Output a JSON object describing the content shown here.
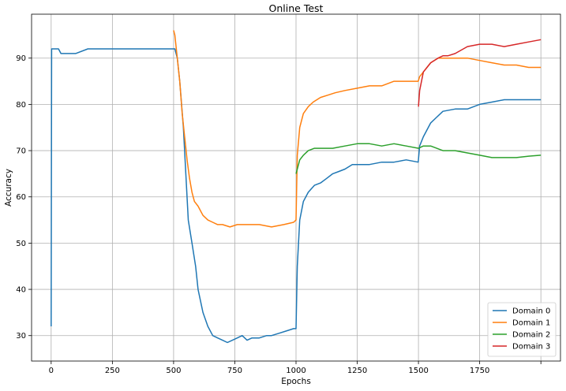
{
  "chart_data": {
    "type": "line",
    "title": "Online Test",
    "xlabel": "Epochs",
    "ylabel": "Accuracy",
    "xlim": [
      -80,
      2080
    ],
    "ylim": [
      24.5,
      99.5
    ],
    "xticks": [
      0,
      250,
      500,
      750,
      1000,
      1250,
      1500,
      1750,
      2000
    ],
    "xtick_labels": [
      "0",
      "250",
      "500",
      "750",
      "1000",
      "1250",
      "1500",
      "1750",
      ""
    ],
    "yticks": [
      30,
      40,
      50,
      60,
      70,
      80,
      90
    ],
    "ytick_labels": [
      "30",
      "40",
      "50",
      "60",
      "70",
      "80",
      "90"
    ],
    "grid": true,
    "legend_position": "bottom-right",
    "series": [
      {
        "name": "Domain 0",
        "color": "#1f77b4",
        "x": [
          0,
          2,
          5,
          30,
          40,
          100,
          150,
          200,
          300,
          400,
          480,
          495,
          505,
          515,
          525,
          540,
          550,
          560,
          575,
          590,
          600,
          620,
          640,
          660,
          680,
          700,
          720,
          740,
          760,
          780,
          800,
          820,
          850,
          880,
          900,
          930,
          960,
          990,
          1000,
          1005,
          1015,
          1030,
          1050,
          1075,
          1100,
          1125,
          1150,
          1175,
          1200,
          1230,
          1260,
          1300,
          1350,
          1400,
          1450,
          1499,
          1505,
          1520,
          1550,
          1570,
          1600,
          1650,
          1700,
          1750,
          1800,
          1850,
          1900,
          1950,
          2000
        ],
        "y": [
          32,
          92,
          92,
          92,
          91,
          91,
          92,
          92,
          92,
          92,
          92,
          92,
          92,
          90,
          85,
          75,
          65,
          55,
          50,
          45,
          40,
          35,
          32,
          30,
          29.5,
          29,
          28.5,
          29,
          29.5,
          30,
          29,
          29.5,
          29.5,
          30,
          30,
          30.5,
          31,
          31.5,
          31.5,
          45,
          55,
          59,
          61,
          62.5,
          63,
          64,
          65,
          65.5,
          66,
          67,
          67,
          67,
          67.5,
          67.5,
          68,
          67.5,
          71,
          73,
          76,
          77,
          78.5,
          79,
          79,
          80,
          80.5,
          81,
          81,
          81,
          81
        ]
      },
      {
        "name": "Domain 1",
        "color": "#ff7f0e",
        "x": [
          500,
          505,
          515,
          525,
          535,
          545,
          555,
          565,
          575,
          585,
          600,
          620,
          640,
          660,
          680,
          700,
          730,
          760,
          800,
          850,
          900,
          950,
          990,
          1000,
          1005,
          1015,
          1030,
          1050,
          1070,
          1100,
          1130,
          1160,
          1200,
          1250,
          1300,
          1350,
          1400,
          1450,
          1499,
          1505,
          1520,
          1550,
          1580,
          1600,
          1650,
          1700,
          1750,
          1800,
          1850,
          1900,
          1950,
          2000
        ],
        "y": [
          96,
          95,
          90,
          85,
          78,
          73,
          68,
          64,
          61,
          59,
          58,
          56,
          55,
          54.5,
          54,
          54,
          53.5,
          54,
          54,
          54,
          53.5,
          54,
          54.5,
          55,
          69,
          75,
          78,
          79.5,
          80.5,
          81.5,
          82,
          82.5,
          83,
          83.5,
          84,
          84,
          85,
          85,
          85,
          86,
          87,
          89,
          90,
          90,
          90,
          90,
          89.5,
          89,
          88.5,
          88.5,
          88,
          88
        ]
      },
      {
        "name": "Domain 2",
        "color": "#2ca02c",
        "x": [
          1000,
          1005,
          1015,
          1030,
          1050,
          1075,
          1100,
          1150,
          1200,
          1250,
          1300,
          1350,
          1400,
          1450,
          1500,
          1520,
          1550,
          1600,
          1650,
          1700,
          1750,
          1800,
          1850,
          1900,
          1950,
          2000
        ],
        "y": [
          65,
          66,
          68,
          69,
          70,
          70.5,
          70.5,
          70.5,
          71,
          71.5,
          71.5,
          71,
          71.5,
          71,
          70.5,
          71,
          71,
          70,
          70,
          69.5,
          69,
          68.5,
          68.5,
          68.5,
          68.8,
          69
        ]
      },
      {
        "name": "Domain 3",
        "color": "#d62728",
        "x": [
          1500,
          1505,
          1520,
          1550,
          1580,
          1600,
          1620,
          1650,
          1700,
          1750,
          1800,
          1850,
          1900,
          1950,
          2000
        ],
        "y": [
          79.5,
          83,
          87,
          89,
          90,
          90.5,
          90.5,
          91,
          92.5,
          93,
          93,
          92.5,
          93,
          93.5,
          94
        ]
      }
    ]
  }
}
